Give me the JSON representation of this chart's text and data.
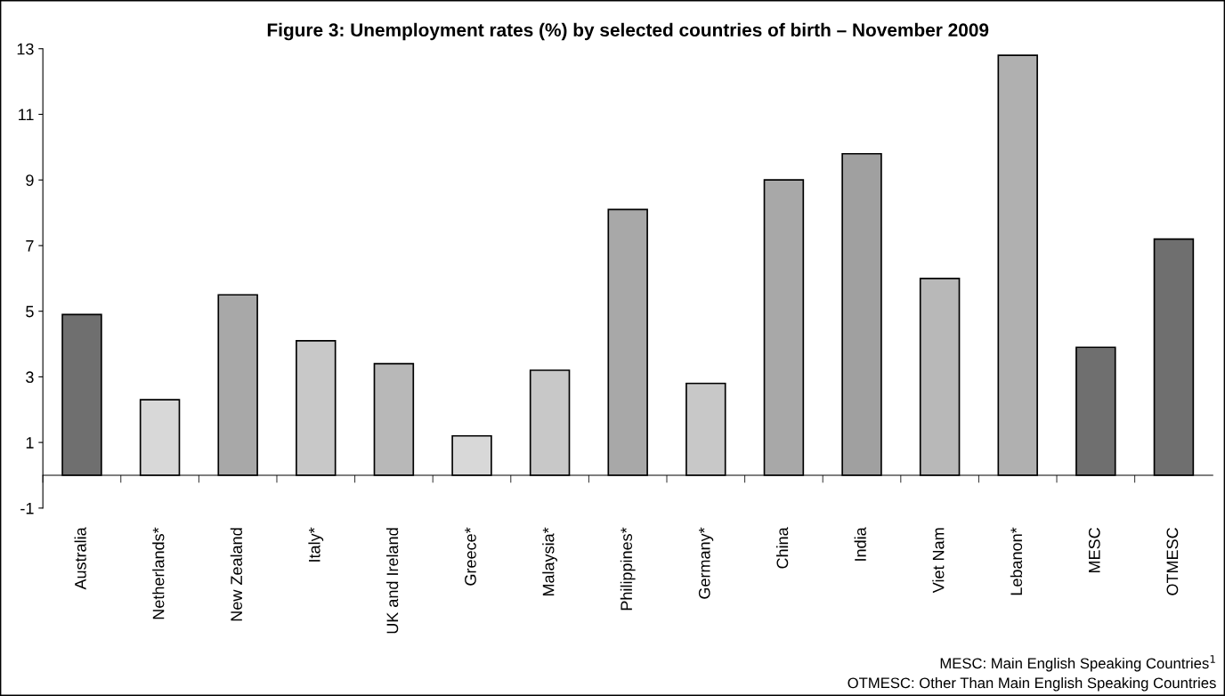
{
  "chart_data": {
    "type": "bar",
    "title": "Figure 3: Unemployment rates (%) by selected countries of birth – November 2009",
    "categories": [
      "Australia",
      "Netherlands*",
      "New Zealand",
      "Italy*",
      "UK and Ireland",
      "Greece*",
      "Malaysia*",
      "Philippines*",
      "Germany*",
      "China",
      "India",
      "Viet Nam",
      "Lebanon*",
      "MESC",
      "OTMESC"
    ],
    "values": [
      4.9,
      2.3,
      5.5,
      4.1,
      3.4,
      1.2,
      3.2,
      8.1,
      2.8,
      9.0,
      9.8,
      6.0,
      12.8,
      3.9,
      7.2
    ],
    "colors": [
      "#6f6f6f",
      "#d8d8d8",
      "#a8a8a8",
      "#c8c8c8",
      "#b8b8b8",
      "#d8d8d8",
      "#c8c8c8",
      "#a8a8a8",
      "#c8c8c8",
      "#a8a8a8",
      "#a0a0a0",
      "#b8b8b8",
      "#b0b0b0",
      "#6f6f6f",
      "#6f6f6f"
    ],
    "ylim": [
      -1,
      13
    ],
    "yticks": [
      -1,
      1,
      3,
      5,
      7,
      9,
      11,
      13
    ],
    "grid": false,
    "annotations": [
      "MESC: Main English Speaking Countries$^{1}$",
      "OTMESC: Other Than Main English Speaking Countries"
    ]
  }
}
